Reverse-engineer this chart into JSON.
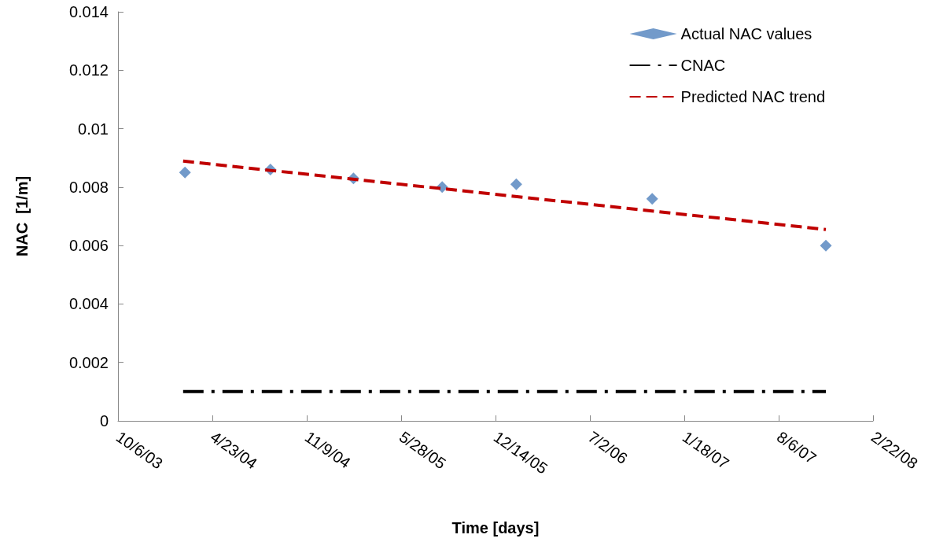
{
  "chart_data": {
    "type": "scatter",
    "xlabel": "Time [days]",
    "ylabel": "NAC  [1/m]",
    "xlim": [
      "2003-10-06",
      "2008-02-22"
    ],
    "xticks": [
      {
        "value": "2003-10-06",
        "label": "10/6/03"
      },
      {
        "value": "2004-04-23",
        "label": "4/23/04"
      },
      {
        "value": "2004-11-09",
        "label": "11/9/04"
      },
      {
        "value": "2005-05-28",
        "label": "5/28/05"
      },
      {
        "value": "2005-12-14",
        "label": "12/14/05"
      },
      {
        "value": "2006-07-02",
        "label": "7/2/06"
      },
      {
        "value": "2007-01-18",
        "label": "1/18/07"
      },
      {
        "value": "2007-08-06",
        "label": "8/6/07"
      },
      {
        "value": "2008-02-22",
        "label": "2/22/08"
      }
    ],
    "ylim": [
      0,
      0.014
    ],
    "yticks": [
      0,
      0.002,
      0.004,
      0.006,
      0.008,
      0.01,
      0.012,
      0.014
    ],
    "grid": false,
    "legend": "top right",
    "series": [
      {
        "name": "Actual NAC values",
        "marker": "diamond",
        "color": "#4f81bd",
        "x": [
          "2004-02-25",
          "2004-08-24",
          "2005-02-16",
          "2005-08-23",
          "2006-01-27",
          "2006-11-11",
          "2007-11-14"
        ],
        "values": [
          0.0085,
          0.0086,
          0.0083,
          0.008,
          0.0081,
          0.0076,
          0.006
        ]
      },
      {
        "name": "CNAC",
        "type": "line",
        "line_style": "dashdot",
        "color": "#000000",
        "x": [
          "2004-02-21",
          "2007-11-14"
        ],
        "values": [
          0.001,
          0.001
        ]
      },
      {
        "name": "Predicted NAC trend",
        "type": "line",
        "line_style": "dashed",
        "color": "#c00000",
        "x": [
          "2004-02-21",
          "2007-11-14"
        ],
        "values": [
          0.00889,
          0.00655
        ]
      }
    ]
  }
}
